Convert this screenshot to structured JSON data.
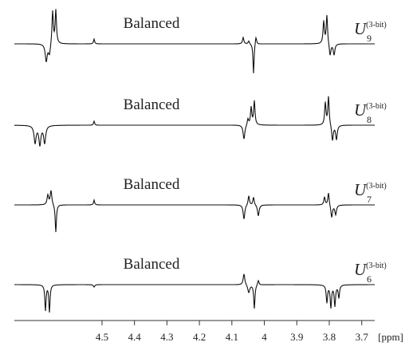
{
  "panels": [
    {
      "label": "Balanced",
      "operator": {
        "symbol": "U",
        "subscript": "9",
        "superscript": "(3-bit)"
      }
    },
    {
      "label": "Balanced",
      "operator": {
        "symbol": "U",
        "subscript": "8",
        "superscript": "(3-bit)"
      }
    },
    {
      "label": "Balanced",
      "operator": {
        "symbol": "U",
        "subscript": "7",
        "superscript": "(3-bit)"
      }
    },
    {
      "label": "Balanced",
      "operator": {
        "symbol": "U",
        "subscript": "6",
        "superscript": "(3-bit)"
      }
    }
  ],
  "x_axis": {
    "unit": "[ppm]",
    "xlim": [
      4.77,
      3.66
    ],
    "xticks": [
      4.5,
      4.4,
      4.3,
      4.2,
      4.1,
      4.0,
      3.9,
      3.8,
      3.7
    ]
  }
}
